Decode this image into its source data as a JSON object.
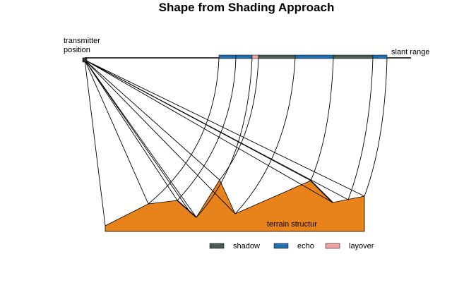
{
  "title": "Shape from Shading Approach",
  "transmitter_label_line1": "transmitter",
  "transmitter_label_line2": "position",
  "slant_range_label": "slant range",
  "terrain_label": "terrain structur",
  "legend": [
    {
      "label": "shadow",
      "color": "#4a5a52"
    },
    {
      "label": "echo",
      "color": "#1f6fad"
    },
    {
      "label": "layover",
      "color": "#f0a0a0"
    }
  ],
  "colors": {
    "terrain": "#e8821a",
    "shadow": "#4a5a52",
    "echo": "#1f6fad",
    "layover": "#f0a0a0",
    "transmitter": "#333333"
  }
}
